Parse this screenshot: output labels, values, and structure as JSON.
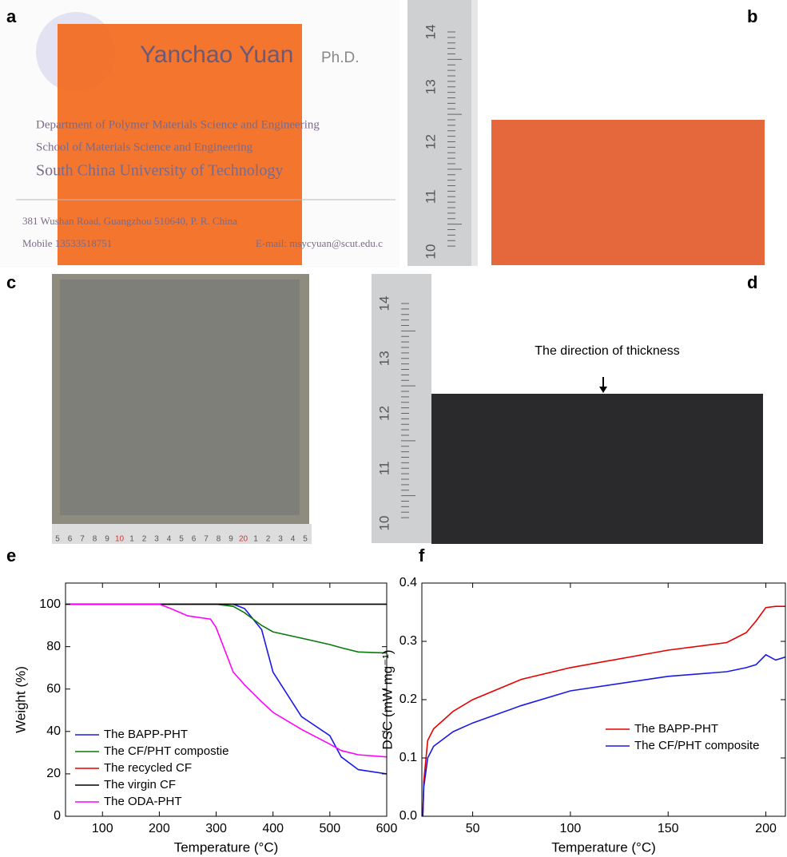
{
  "panel_labels": [
    "a",
    "b",
    "c",
    "d",
    "e",
    "f"
  ],
  "photos": {
    "card_name": "Yanchao Yuan",
    "card_degree": "Ph.D.",
    "card_lines": [
      "Department of Polymer Materials Science and Engineering",
      "School of Materials Science and Engineering",
      "South China University of Technology",
      "381 Wushan Road, Guangzhou 510640, P. R. China"
    ],
    "card_mobile": "Mobile 13533518751",
    "card_email": "E-mail: msycyuan@scut.edu.c",
    "ruler_b": [
      "14",
      "13",
      "12",
      "11",
      "10"
    ],
    "ruler_c": [
      "5",
      "6",
      "7",
      "8",
      "9",
      "10",
      "1",
      "2",
      "3",
      "4",
      "5",
      "6",
      "7",
      "8",
      "9",
      "20",
      "1",
      "2",
      "3",
      "4",
      "5"
    ],
    "ruler_d": [
      "14",
      "13",
      "12",
      "11",
      "10"
    ],
    "annotation_d": "The direction of thickness"
  },
  "chart_data": [
    {
      "type": "line",
      "x_label": "Temperature (°C)",
      "y_label": "Weight (%)",
      "x": [
        35,
        100,
        200,
        220,
        250,
        290,
        300,
        330,
        350,
        380,
        400,
        450,
        500,
        520,
        550,
        600
      ],
      "xlim": [
        35,
        600
      ],
      "ylim": [
        0,
        110
      ],
      "xticks": [
        100,
        200,
        300,
        400,
        500,
        600
      ],
      "yticks": [
        0,
        20,
        40,
        60,
        80,
        100
      ],
      "legend": "lower-left",
      "series": [
        {
          "name": "The BAPP-PHT",
          "color": "#1a1ae6",
          "values": [
            100,
            100,
            100,
            100,
            100,
            100,
            100,
            100,
            98,
            88,
            68,
            47,
            38,
            28,
            22,
            20
          ]
        },
        {
          "name": "The CF/PHT compostie",
          "color": "#0a7a0a",
          "values": [
            100,
            100,
            100,
            100,
            100,
            100,
            100,
            99,
            96,
            90,
            87,
            84,
            81,
            79.5,
            77.5,
            77
          ]
        },
        {
          "name": "The recycled CF",
          "color": "#e60000",
          "values": [
            100,
            100,
            100,
            100,
            100,
            100,
            100,
            100,
            100,
            100,
            100,
            100,
            100,
            100,
            100,
            100
          ]
        },
        {
          "name": "The virgin CF",
          "color": "#000000",
          "values": [
            100,
            100,
            100,
            100,
            100,
            100,
            100,
            100,
            100,
            100,
            100,
            100,
            100,
            100,
            100,
            100
          ]
        },
        {
          "name": "The ODA-PHT",
          "color": "#ff00ff",
          "values": [
            100,
            100,
            100,
            98,
            94.5,
            93,
            89,
            68,
            62,
            54,
            49,
            41,
            34,
            31,
            29,
            28
          ]
        }
      ]
    },
    {
      "type": "line",
      "x_label": "Temperature (°C)",
      "y_label": "DSC (mW mg⁻¹)",
      "x": [
        24.5,
        25,
        27,
        30,
        40,
        50,
        75,
        100,
        150,
        180,
        190,
        195,
        200,
        205,
        210
      ],
      "xlim": [
        24,
        210
      ],
      "ylim": [
        0,
        0.4
      ],
      "xticks": [
        50,
        100,
        150,
        200
      ],
      "yticks": [
        {
          "value": 0,
          "label": "0.0"
        },
        0.1,
        0.2,
        0.3,
        0.4
      ],
      "legend": "lower-right",
      "series": [
        {
          "name": "The BAPP-PHT",
          "color": "#e60000",
          "values": [
            0.0,
            0.06,
            0.13,
            0.15,
            0.18,
            0.2,
            0.235,
            0.255,
            0.285,
            0.298,
            0.315,
            0.335,
            0.358,
            0.36,
            0.36
          ]
        },
        {
          "name": "The CF/PHT composite",
          "color": "#1a1ae6",
          "values": [
            0.0,
            0.05,
            0.1,
            0.12,
            0.145,
            0.16,
            0.19,
            0.215,
            0.24,
            0.248,
            0.255,
            0.26,
            0.277,
            0.268,
            0.273
          ]
        }
      ]
    }
  ]
}
